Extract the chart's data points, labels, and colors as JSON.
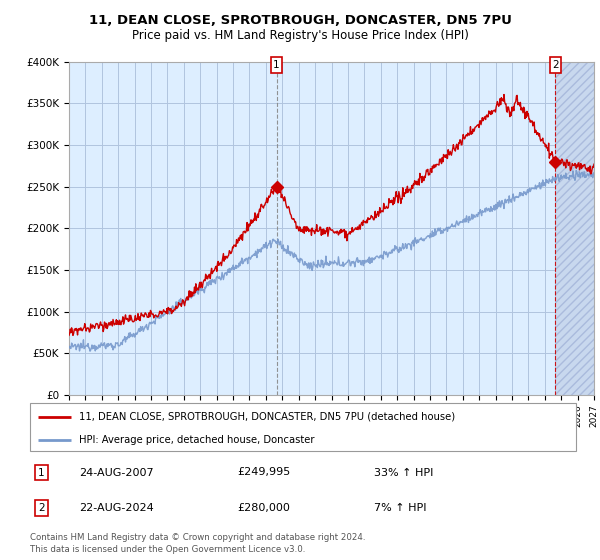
{
  "title": "11, DEAN CLOSE, SPROTBROUGH, DONCASTER, DN5 7PU",
  "subtitle": "Price paid vs. HM Land Registry's House Price Index (HPI)",
  "legend_line1": "11, DEAN CLOSE, SPROTBROUGH, DONCASTER, DN5 7PU (detached house)",
  "legend_line2": "HPI: Average price, detached house, Doncaster",
  "annotation1_label": "1",
  "annotation1_date": "24-AUG-2007",
  "annotation1_price": "£249,995",
  "annotation1_hpi": "33% ↑ HPI",
  "annotation2_label": "2",
  "annotation2_date": "22-AUG-2024",
  "annotation2_price": "£280,000",
  "annotation2_hpi": "7% ↑ HPI",
  "footer": "Contains HM Land Registry data © Crown copyright and database right 2024.\nThis data is licensed under the Open Government Licence v3.0.",
  "price_color": "#cc0000",
  "hpi_color": "#7799cc",
  "plot_bg_color": "#ddeeff",
  "hatch_bg_color": "#c8d8ee",
  "ylim": [
    0,
    400000
  ],
  "yticks": [
    0,
    50000,
    100000,
    150000,
    200000,
    250000,
    300000,
    350000,
    400000
  ],
  "ytick_labels": [
    "£0",
    "£50K",
    "£100K",
    "£150K",
    "£200K",
    "£250K",
    "£300K",
    "£350K",
    "£400K"
  ],
  "year_start": 1995,
  "year_end": 2027,
  "sale1_year": 2007.65,
  "sale1_price": 249995,
  "sale2_year": 2024.65,
  "sale2_price": 280000
}
